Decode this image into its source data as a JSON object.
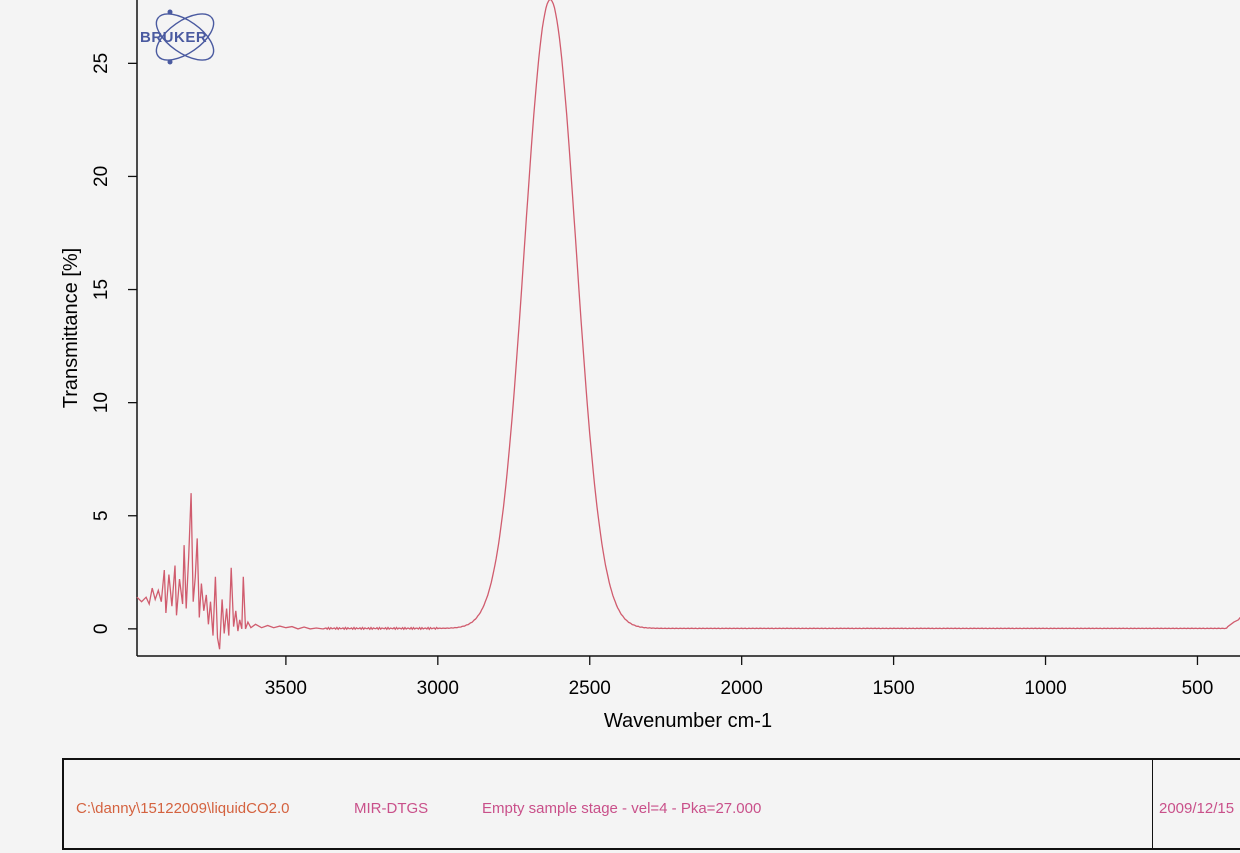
{
  "chart_data": {
    "type": "line",
    "title": "",
    "xlabel": "Wavenumber cm-1",
    "ylabel": "Transmittance [%]",
    "xlim": [
      3990,
      360
    ],
    "ylim": [
      -1.2,
      27.8
    ],
    "x_ticks": [
      3500,
      3000,
      2500,
      2000,
      1500,
      1000,
      500
    ],
    "y_ticks": [
      0,
      5,
      10,
      15,
      20,
      25
    ],
    "grid": false,
    "legend": "none",
    "series": [
      {
        "color": "#d05c6e",
        "noise_region": [
          [
            3990,
            1.4
          ],
          [
            3975,
            1.2
          ],
          [
            3960,
            1.4
          ],
          [
            3950,
            1.1
          ],
          [
            3940,
            1.8
          ],
          [
            3930,
            1.3
          ],
          [
            3920,
            1.7
          ],
          [
            3910,
            1.2
          ],
          [
            3900,
            2.6
          ],
          [
            3895,
            0.7
          ],
          [
            3885,
            2.4
          ],
          [
            3875,
            1.0
          ],
          [
            3865,
            2.8
          ],
          [
            3860,
            0.6
          ],
          [
            3850,
            2.2
          ],
          [
            3840,
            1.1
          ],
          [
            3835,
            3.7
          ],
          [
            3828,
            0.9
          ],
          [
            3820,
            3.2
          ],
          [
            3812,
            6.0
          ],
          [
            3805,
            1.2
          ],
          [
            3798,
            2.3
          ],
          [
            3792,
            4.0
          ],
          [
            3785,
            0.5
          ],
          [
            3778,
            2.0
          ],
          [
            3770,
            0.8
          ],
          [
            3762,
            1.5
          ],
          [
            3755,
            0.2
          ],
          [
            3748,
            1.2
          ],
          [
            3740,
            -0.3
          ],
          [
            3732,
            2.3
          ],
          [
            3725,
            -0.4
          ],
          [
            3718,
            -0.9
          ],
          [
            3710,
            1.3
          ],
          [
            3703,
            -0.2
          ],
          [
            3695,
            0.9
          ],
          [
            3688,
            -0.3
          ],
          [
            3680,
            2.7
          ],
          [
            3672,
            0.1
          ],
          [
            3665,
            0.8
          ],
          [
            3658,
            -0.1
          ],
          [
            3652,
            0.4
          ],
          [
            3645,
            0.0
          ],
          [
            3640,
            2.3
          ],
          [
            3633,
            0.0
          ],
          [
            3625,
            0.3
          ],
          [
            3615,
            0.05
          ],
          [
            3600,
            0.2
          ],
          [
            3580,
            0.05
          ],
          [
            3560,
            0.15
          ],
          [
            3540,
            0.05
          ],
          [
            3520,
            0.12
          ],
          [
            3500,
            0.05
          ],
          [
            3480,
            0.1
          ],
          [
            3460,
            0.0
          ],
          [
            3440,
            0.08
          ],
          [
            3420,
            0.0
          ],
          [
            3400,
            0.04
          ],
          [
            3380,
            0.0
          ]
        ],
        "peak": {
          "center": 2630,
          "height": 27.8,
          "fwhm": 200
        },
        "baseline": 0.02,
        "tail": [
          [
            400,
            0.1
          ],
          [
            380,
            0.3
          ],
          [
            365,
            0.4
          ],
          [
            360,
            0.5
          ]
        ]
      }
    ]
  },
  "logo": {
    "text": "BRUKER"
  },
  "info_box": {
    "path": "C:\\danny\\15122009\\liquidCO2.0",
    "detector": "MIR-DTGS",
    "description": "Empty sample stage - vel=4 - Pka=27.000",
    "date": "2009/12/15"
  }
}
